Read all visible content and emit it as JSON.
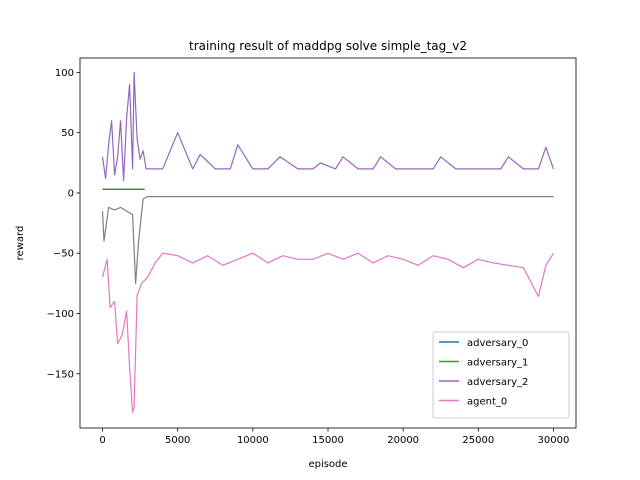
{
  "chart_data": {
    "type": "line",
    "title": "training result of maddpg solve simple_tag_v2",
    "xlabel": "episode",
    "ylabel": "reward",
    "xlim": [
      -1500,
      31500
    ],
    "ylim": [
      -195,
      112
    ],
    "xticks": [
      0,
      5000,
      10000,
      15000,
      20000,
      25000,
      30000
    ],
    "xtick_labels": [
      "0",
      "5000",
      "10000",
      "15000",
      "20000",
      "25000",
      "30000"
    ],
    "yticks": [
      -150,
      -100,
      -50,
      0,
      50,
      100
    ],
    "ytick_labels": [
      "−150",
      "−100",
      "−50",
      "0",
      "50",
      "100"
    ],
    "grid": false,
    "legend_position": "lower right",
    "series": [
      {
        "name": "adversary_0",
        "color": "#1f77b4",
        "points": [
          [
            0,
            3
          ],
          [
            2800,
            3
          ]
        ]
      },
      {
        "name": "adversary_1",
        "color": "#2ca02c",
        "points": [
          [
            0,
            3
          ],
          [
            2800,
            3
          ]
        ]
      },
      {
        "name": "adversary_2",
        "color": "#9467bd",
        "points": [
          [
            0,
            30
          ],
          [
            200,
            12
          ],
          [
            400,
            40
          ],
          [
            600,
            60
          ],
          [
            800,
            15
          ],
          [
            1000,
            30
          ],
          [
            1200,
            60
          ],
          [
            1400,
            10
          ],
          [
            1600,
            62
          ],
          [
            1800,
            90
          ],
          [
            2000,
            20
          ],
          [
            2100,
            100
          ],
          [
            2300,
            45
          ],
          [
            2500,
            28
          ],
          [
            2700,
            35
          ],
          [
            2900,
            20
          ],
          [
            3500,
            20
          ],
          [
            4000,
            20
          ],
          [
            5000,
            50
          ],
          [
            6000,
            20
          ],
          [
            6500,
            32
          ],
          [
            7500,
            20
          ],
          [
            8500,
            20
          ],
          [
            9000,
            40
          ],
          [
            10000,
            20
          ],
          [
            11000,
            20
          ],
          [
            11800,
            30
          ],
          [
            13000,
            20
          ],
          [
            14000,
            20
          ],
          [
            14500,
            25
          ],
          [
            15500,
            20
          ],
          [
            16000,
            30
          ],
          [
            17000,
            20
          ],
          [
            18000,
            20
          ],
          [
            18500,
            30
          ],
          [
            19500,
            20
          ],
          [
            20000,
            20
          ],
          [
            21000,
            20
          ],
          [
            22000,
            20
          ],
          [
            22500,
            30
          ],
          [
            23500,
            20
          ],
          [
            24500,
            20
          ],
          [
            25500,
            20
          ],
          [
            26500,
            20
          ],
          [
            27000,
            30
          ],
          [
            28000,
            20
          ],
          [
            29000,
            20
          ],
          [
            29500,
            38
          ],
          [
            30000,
            20
          ]
        ]
      },
      {
        "name": "agent_0",
        "color": "#e377c2",
        "points": [
          [
            0,
            -70
          ],
          [
            300,
            -55
          ],
          [
            500,
            -95
          ],
          [
            800,
            -90
          ],
          [
            1000,
            -125
          ],
          [
            1300,
            -118
          ],
          [
            1600,
            -98
          ],
          [
            1800,
            -145
          ],
          [
            2000,
            -182
          ],
          [
            2100,
            -178
          ],
          [
            2300,
            -85
          ],
          [
            2600,
            -75
          ],
          [
            3000,
            -70
          ],
          [
            3500,
            -58
          ],
          [
            4000,
            -50
          ],
          [
            5000,
            -52
          ],
          [
            6000,
            -58
          ],
          [
            7000,
            -52
          ],
          [
            8000,
            -60
          ],
          [
            9000,
            -55
          ],
          [
            10000,
            -50
          ],
          [
            11000,
            -58
          ],
          [
            12000,
            -52
          ],
          [
            13000,
            -55
          ],
          [
            14000,
            -55
          ],
          [
            15000,
            -50
          ],
          [
            16000,
            -55
          ],
          [
            17000,
            -50
          ],
          [
            18000,
            -58
          ],
          [
            19000,
            -52
          ],
          [
            20000,
            -55
          ],
          [
            21000,
            -60
          ],
          [
            22000,
            -52
          ],
          [
            23000,
            -55
          ],
          [
            24000,
            -62
          ],
          [
            25000,
            -55
          ],
          [
            26000,
            -58
          ],
          [
            27000,
            -60
          ],
          [
            28000,
            -62
          ],
          [
            29000,
            -86
          ],
          [
            29500,
            -60
          ],
          [
            30000,
            -50
          ]
        ]
      },
      {
        "name": "",
        "color": "#8c564b",
        "points": [
          [
            0,
            3
          ],
          [
            2800,
            3
          ]
        ]
      },
      {
        "name": "",
        "color": "#7f7f7f",
        "points": [
          [
            0,
            -15
          ],
          [
            100,
            -40
          ],
          [
            400,
            -12
          ],
          [
            800,
            -14
          ],
          [
            1200,
            -12
          ],
          [
            1600,
            -15
          ],
          [
            2000,
            -18
          ],
          [
            2200,
            -75
          ],
          [
            2400,
            -40
          ],
          [
            2700,
            -5
          ],
          [
            3000,
            -3
          ],
          [
            5000,
            -3
          ],
          [
            10000,
            -3
          ],
          [
            15000,
            -3
          ],
          [
            20000,
            -3
          ],
          [
            25000,
            -3
          ],
          [
            30000,
            -3
          ]
        ]
      }
    ]
  }
}
